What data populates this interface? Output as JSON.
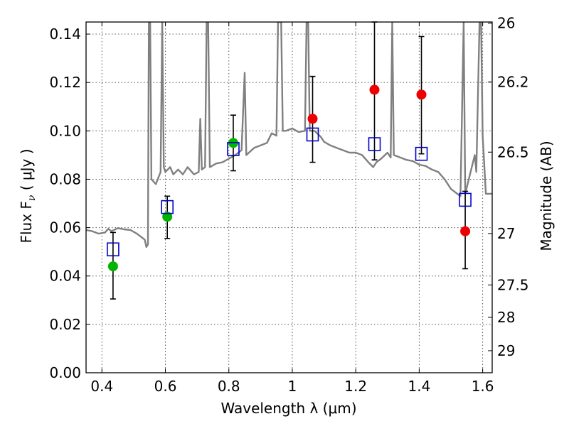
{
  "chart_data": {
    "type": "scatter",
    "title": "",
    "xlabel": "Wavelength  λ (μm)",
    "ylabel": "Flux  F",
    "ylabel_sub": "ν",
    "ylabel_unit": " ( μJy )",
    "y2label": "Magnitude (AB)",
    "xlim": [
      0.35,
      1.63
    ],
    "ylim": [
      0.0,
      0.145
    ],
    "grid": true,
    "colors": {
      "spectrum": "#808080",
      "green": "#00b400",
      "red": "#ee0000",
      "model": "#0000cc",
      "errorbar": "#000000"
    },
    "x_ticks": [
      {
        "value": 0.4,
        "label": "0.4"
      },
      {
        "value": 0.6,
        "label": "0.6"
      },
      {
        "value": 0.8,
        "label": "0.8"
      },
      {
        "value": 1.0,
        "label": "1"
      },
      {
        "value": 1.2,
        "label": "1.2"
      },
      {
        "value": 1.4,
        "label": "1.4"
      },
      {
        "value": 1.6,
        "label": "1.6"
      }
    ],
    "y_ticks": [
      {
        "value": 0.0,
        "label": "0.00"
      },
      {
        "value": 0.02,
        "label": "0.02"
      },
      {
        "value": 0.04,
        "label": "0.04"
      },
      {
        "value": 0.06,
        "label": "0.06"
      },
      {
        "value": 0.08,
        "label": "0.08"
      },
      {
        "value": 0.1,
        "label": "0.10"
      },
      {
        "value": 0.12,
        "label": "0.12"
      },
      {
        "value": 0.14,
        "label": "0.14"
      }
    ],
    "y2_ticks": [
      {
        "mag": 26,
        "label": "26"
      },
      {
        "mag": 26.2,
        "label": "26.2"
      },
      {
        "mag": 26.5,
        "label": "26.5"
      },
      {
        "mag": 27,
        "label": "27"
      },
      {
        "mag": 27.5,
        "label": "27.5"
      },
      {
        "mag": 28,
        "label": "28"
      },
      {
        "mag": 29,
        "label": "29"
      }
    ],
    "observed_points": [
      {
        "x": 0.435,
        "y": 0.044,
        "yerr_low": 0.0305,
        "yerr_high": 0.058,
        "color": "green"
      },
      {
        "x": 0.606,
        "y": 0.0645,
        "yerr_low": 0.0555,
        "yerr_high": 0.073,
        "color": "green"
      },
      {
        "x": 0.814,
        "y": 0.095,
        "yerr_low": 0.0835,
        "yerr_high": 0.1065,
        "color": "green"
      },
      {
        "x": 1.064,
        "y": 0.105,
        "yerr_low": 0.087,
        "yerr_high": 0.1225,
        "color": "red"
      },
      {
        "x": 1.259,
        "y": 0.117,
        "yerr_low": 0.088,
        "yerr_high": 0.145,
        "color": "red"
      },
      {
        "x": 1.407,
        "y": 0.115,
        "yerr_low": 0.0905,
        "yerr_high": 0.139,
        "color": "red"
      },
      {
        "x": 1.545,
        "y": 0.0585,
        "yerr_low": 0.043,
        "yerr_high": 0.075,
        "color": "red"
      }
    ],
    "model_points": [
      {
        "x": 0.435,
        "y": 0.051
      },
      {
        "x": 0.606,
        "y": 0.0685
      },
      {
        "x": 0.814,
        "y": 0.0925
      },
      {
        "x": 1.064,
        "y": 0.0985
      },
      {
        "x": 1.259,
        "y": 0.0945
      },
      {
        "x": 1.407,
        "y": 0.0905
      },
      {
        "x": 1.545,
        "y": 0.0715
      }
    ],
    "spectrum": [
      [
        0.35,
        0.059
      ],
      [
        0.37,
        0.0585
      ],
      [
        0.39,
        0.0575
      ],
      [
        0.41,
        0.058
      ],
      [
        0.42,
        0.0595
      ],
      [
        0.43,
        0.0585
      ],
      [
        0.45,
        0.0598
      ],
      [
        0.47,
        0.0593
      ],
      [
        0.49,
        0.059
      ],
      [
        0.51,
        0.0575
      ],
      [
        0.525,
        0.056
      ],
      [
        0.535,
        0.055
      ],
      [
        0.54,
        0.052
      ],
      [
        0.545,
        0.053
      ],
      [
        0.548,
        0.145
      ],
      [
        0.552,
        0.145
      ],
      [
        0.556,
        0.08
      ],
      [
        0.57,
        0.078
      ],
      [
        0.585,
        0.083
      ],
      [
        0.59,
        0.145
      ],
      [
        0.595,
        0.085
      ],
      [
        0.6,
        0.083
      ],
      [
        0.615,
        0.085
      ],
      [
        0.625,
        0.082
      ],
      [
        0.64,
        0.084
      ],
      [
        0.655,
        0.082
      ],
      [
        0.67,
        0.085
      ],
      [
        0.69,
        0.082
      ],
      [
        0.705,
        0.083
      ],
      [
        0.71,
        0.105
      ],
      [
        0.715,
        0.084
      ],
      [
        0.725,
        0.085
      ],
      [
        0.73,
        0.145
      ],
      [
        0.735,
        0.145
      ],
      [
        0.74,
        0.085
      ],
      [
        0.76,
        0.0865
      ],
      [
        0.78,
        0.087
      ],
      [
        0.8,
        0.0885
      ],
      [
        0.82,
        0.09
      ],
      [
        0.84,
        0.092
      ],
      [
        0.85,
        0.124
      ],
      [
        0.855,
        0.09
      ],
      [
        0.88,
        0.093
      ],
      [
        0.9,
        0.094
      ],
      [
        0.92,
        0.095
      ],
      [
        0.935,
        0.099
      ],
      [
        0.95,
        0.098
      ],
      [
        0.955,
        0.145
      ],
      [
        0.96,
        0.145
      ],
      [
        0.965,
        0.145
      ],
      [
        0.97,
        0.1
      ],
      [
        0.98,
        0.1
      ],
      [
        1.0,
        0.101
      ],
      [
        1.02,
        0.0995
      ],
      [
        1.04,
        0.1
      ],
      [
        1.045,
        0.145
      ],
      [
        1.05,
        0.145
      ],
      [
        1.055,
        0.1
      ],
      [
        1.07,
        0.1
      ],
      [
        1.09,
        0.0975
      ],
      [
        1.1,
        0.0955
      ],
      [
        1.12,
        0.094
      ],
      [
        1.14,
        0.093
      ],
      [
        1.16,
        0.092
      ],
      [
        1.18,
        0.091
      ],
      [
        1.2,
        0.091
      ],
      [
        1.22,
        0.09
      ],
      [
        1.24,
        0.087
      ],
      [
        1.255,
        0.085
      ],
      [
        1.265,
        0.087
      ],
      [
        1.28,
        0.0885
      ],
      [
        1.3,
        0.091
      ],
      [
        1.31,
        0.089
      ],
      [
        1.315,
        0.145
      ],
      [
        1.32,
        0.09
      ],
      [
        1.34,
        0.089
      ],
      [
        1.36,
        0.088
      ],
      [
        1.38,
        0.0875
      ],
      [
        1.4,
        0.086
      ],
      [
        1.42,
        0.0855
      ],
      [
        1.44,
        0.084
      ],
      [
        1.46,
        0.083
      ],
      [
        1.48,
        0.08
      ],
      [
        1.5,
        0.076
      ],
      [
        1.52,
        0.074
      ],
      [
        1.53,
        0.073
      ],
      [
        1.54,
        0.145
      ],
      [
        1.545,
        0.074
      ],
      [
        1.56,
        0.082
      ],
      [
        1.575,
        0.09
      ],
      [
        1.58,
        0.083
      ],
      [
        1.59,
        0.145
      ],
      [
        1.595,
        0.145
      ],
      [
        1.6,
        0.098
      ],
      [
        1.61,
        0.074
      ],
      [
        1.63,
        0.074
      ]
    ]
  }
}
